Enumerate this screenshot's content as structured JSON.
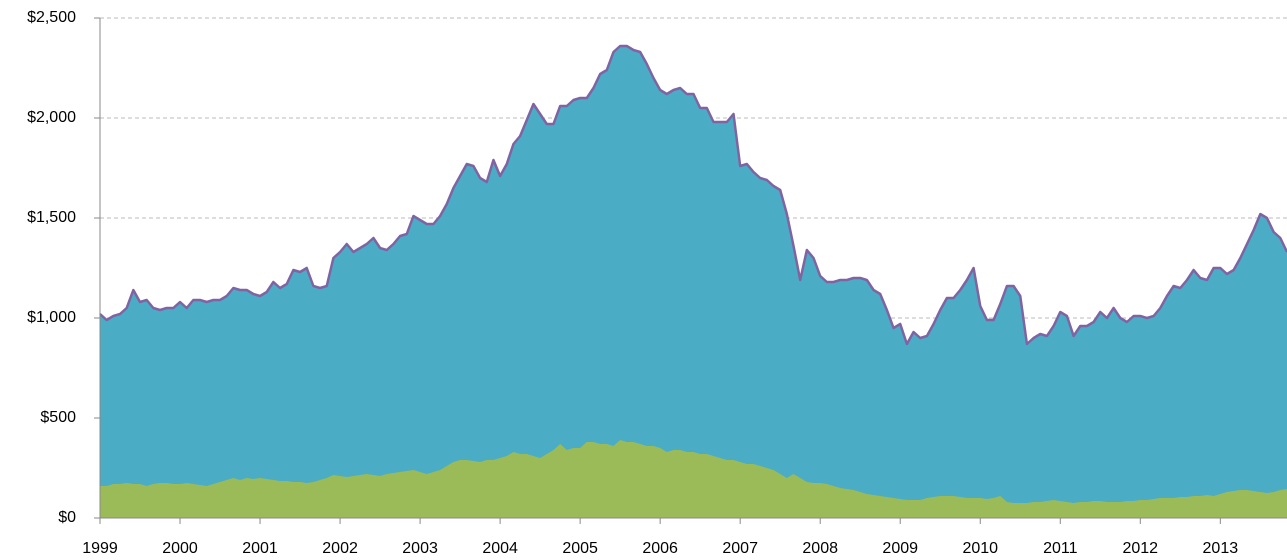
{
  "chart_data": {
    "type": "area",
    "stacked": false,
    "categories": [
      "1999",
      null,
      null,
      null,
      null,
      null,
      null,
      null,
      null,
      null,
      null,
      null,
      "2000",
      null,
      null,
      null,
      null,
      null,
      null,
      null,
      null,
      null,
      null,
      null,
      "2001",
      null,
      null,
      null,
      null,
      null,
      null,
      null,
      null,
      null,
      null,
      null,
      "2002",
      null,
      null,
      null,
      null,
      null,
      null,
      null,
      null,
      null,
      null,
      null,
      "2003",
      null,
      null,
      null,
      null,
      null,
      null,
      null,
      null,
      null,
      null,
      null,
      "2004",
      null,
      null,
      null,
      null,
      null,
      null,
      null,
      null,
      null,
      null,
      null,
      "2005",
      null,
      null,
      null,
      null,
      null,
      null,
      null,
      null,
      null,
      null,
      null,
      "2006",
      null,
      null,
      null,
      null,
      null,
      null,
      null,
      null,
      null,
      null,
      null,
      "2007",
      null,
      null,
      null,
      null,
      null,
      null,
      null,
      null,
      null,
      null,
      null,
      "2008",
      null,
      null,
      null,
      null,
      null,
      null,
      null,
      null,
      null,
      null,
      null,
      "2009",
      null,
      null,
      null,
      null,
      null,
      null,
      null,
      null,
      null,
      null,
      null,
      "2010",
      null,
      null,
      null,
      null,
      null,
      null,
      null,
      null,
      null,
      null,
      null,
      "2011",
      null,
      null,
      null,
      null,
      null,
      null,
      null,
      null,
      null,
      null,
      null,
      "2012",
      null,
      null,
      null,
      null,
      null,
      null,
      null,
      null,
      null,
      null,
      null,
      "2013",
      null,
      null,
      null,
      null,
      null,
      null,
      null,
      null,
      null,
      null
    ],
    "series": [
      {
        "color": "#4bacc6",
        "line_color": "#8064a2",
        "values": [
          1020,
          990,
          1010,
          1020,
          1050,
          1140,
          1080,
          1090,
          1050,
          1040,
          1050,
          1050,
          1080,
          1050,
          1090,
          1090,
          1080,
          1090,
          1090,
          1110,
          1150,
          1140,
          1140,
          1120,
          1110,
          1130,
          1180,
          1150,
          1170,
          1240,
          1230,
          1250,
          1160,
          1150,
          1160,
          1300,
          1330,
          1370,
          1330,
          1350,
          1370,
          1400,
          1350,
          1340,
          1370,
          1410,
          1420,
          1510,
          1490,
          1470,
          1470,
          1510,
          1570,
          1650,
          1710,
          1770,
          1760,
          1700,
          1680,
          1790,
          1710,
          1770,
          1870,
          1910,
          1990,
          2070,
          2020,
          1970,
          1970,
          2060,
          2060,
          2090,
          2100,
          2100,
          2150,
          2220,
          2240,
          2330,
          2360,
          2360,
          2340,
          2330,
          2270,
          2200,
          2140,
          2120,
          2140,
          2150,
          2120,
          2120,
          2050,
          2050,
          1980,
          1980,
          1980,
          2020,
          1760,
          1770,
          1730,
          1700,
          1690,
          1660,
          1640,
          1520,
          1360,
          1190,
          1340,
          1300,
          1210,
          1180,
          1180,
          1190,
          1190,
          1200,
          1200,
          1190,
          1140,
          1120,
          1040,
          950,
          970,
          870,
          930,
          900,
          910,
          970,
          1040,
          1100,
          1100,
          1140,
          1190,
          1250,
          1060,
          990,
          990,
          1070,
          1160,
          1160,
          1110,
          870,
          900,
          920,
          910,
          960,
          1030,
          1010,
          910,
          960,
          960,
          980,
          1030,
          1000,
          1050,
          1000,
          980,
          1010,
          1010,
          1000,
          1010,
          1050,
          1110,
          1160,
          1150,
          1190,
          1240,
          1200,
          1190,
          1250,
          1250,
          1220,
          1240,
          1300,
          1370,
          1440,
          1520,
          1500,
          1430,
          1400,
          1330
        ]
      },
      {
        "color": "#9bbb59",
        "values": [
          160,
          160,
          170,
          170,
          175,
          170,
          170,
          160,
          170,
          175,
          175,
          170,
          170,
          175,
          170,
          165,
          160,
          170,
          180,
          190,
          200,
          190,
          200,
          195,
          200,
          195,
          190,
          185,
          185,
          180,
          180,
          175,
          180,
          190,
          200,
          215,
          210,
          205,
          210,
          215,
          220,
          215,
          210,
          220,
          225,
          230,
          235,
          240,
          230,
          220,
          230,
          240,
          260,
          280,
          290,
          290,
          285,
          280,
          290,
          290,
          300,
          310,
          330,
          320,
          320,
          310,
          300,
          320,
          340,
          370,
          340,
          350,
          350,
          380,
          380,
          370,
          370,
          360,
          390,
          380,
          380,
          370,
          360,
          360,
          350,
          330,
          340,
          340,
          330,
          330,
          320,
          320,
          310,
          300,
          290,
          290,
          280,
          270,
          270,
          260,
          250,
          240,
          220,
          200,
          220,
          200,
          180,
          175,
          175,
          170,
          160,
          150,
          145,
          140,
          130,
          120,
          115,
          110,
          105,
          100,
          95,
          90,
          90,
          90,
          100,
          105,
          110,
          110,
          110,
          105,
          100,
          100,
          100,
          95,
          100,
          110,
          80,
          75,
          75,
          75,
          80,
          80,
          85,
          90,
          85,
          80,
          75,
          80,
          80,
          85,
          85,
          80,
          80,
          80,
          85,
          85,
          90,
          90,
          95,
          100,
          100,
          100,
          105,
          105,
          110,
          110,
          115,
          110,
          120,
          130,
          135,
          140,
          140,
          135,
          130,
          125,
          130,
          140,
          145
        ]
      }
    ],
    "ylim": [
      0,
      2500
    ],
    "yticks": [
      {
        "value": 0,
        "label": "$0"
      },
      {
        "value": 500,
        "label": "$500"
      },
      {
        "value": 1000,
        "label": "$1,000"
      },
      {
        "value": 1500,
        "label": "$1,500"
      },
      {
        "value": 2000,
        "label": "$2,000"
      },
      {
        "value": 2500,
        "label": "$2,500"
      }
    ],
    "grid": true
  }
}
